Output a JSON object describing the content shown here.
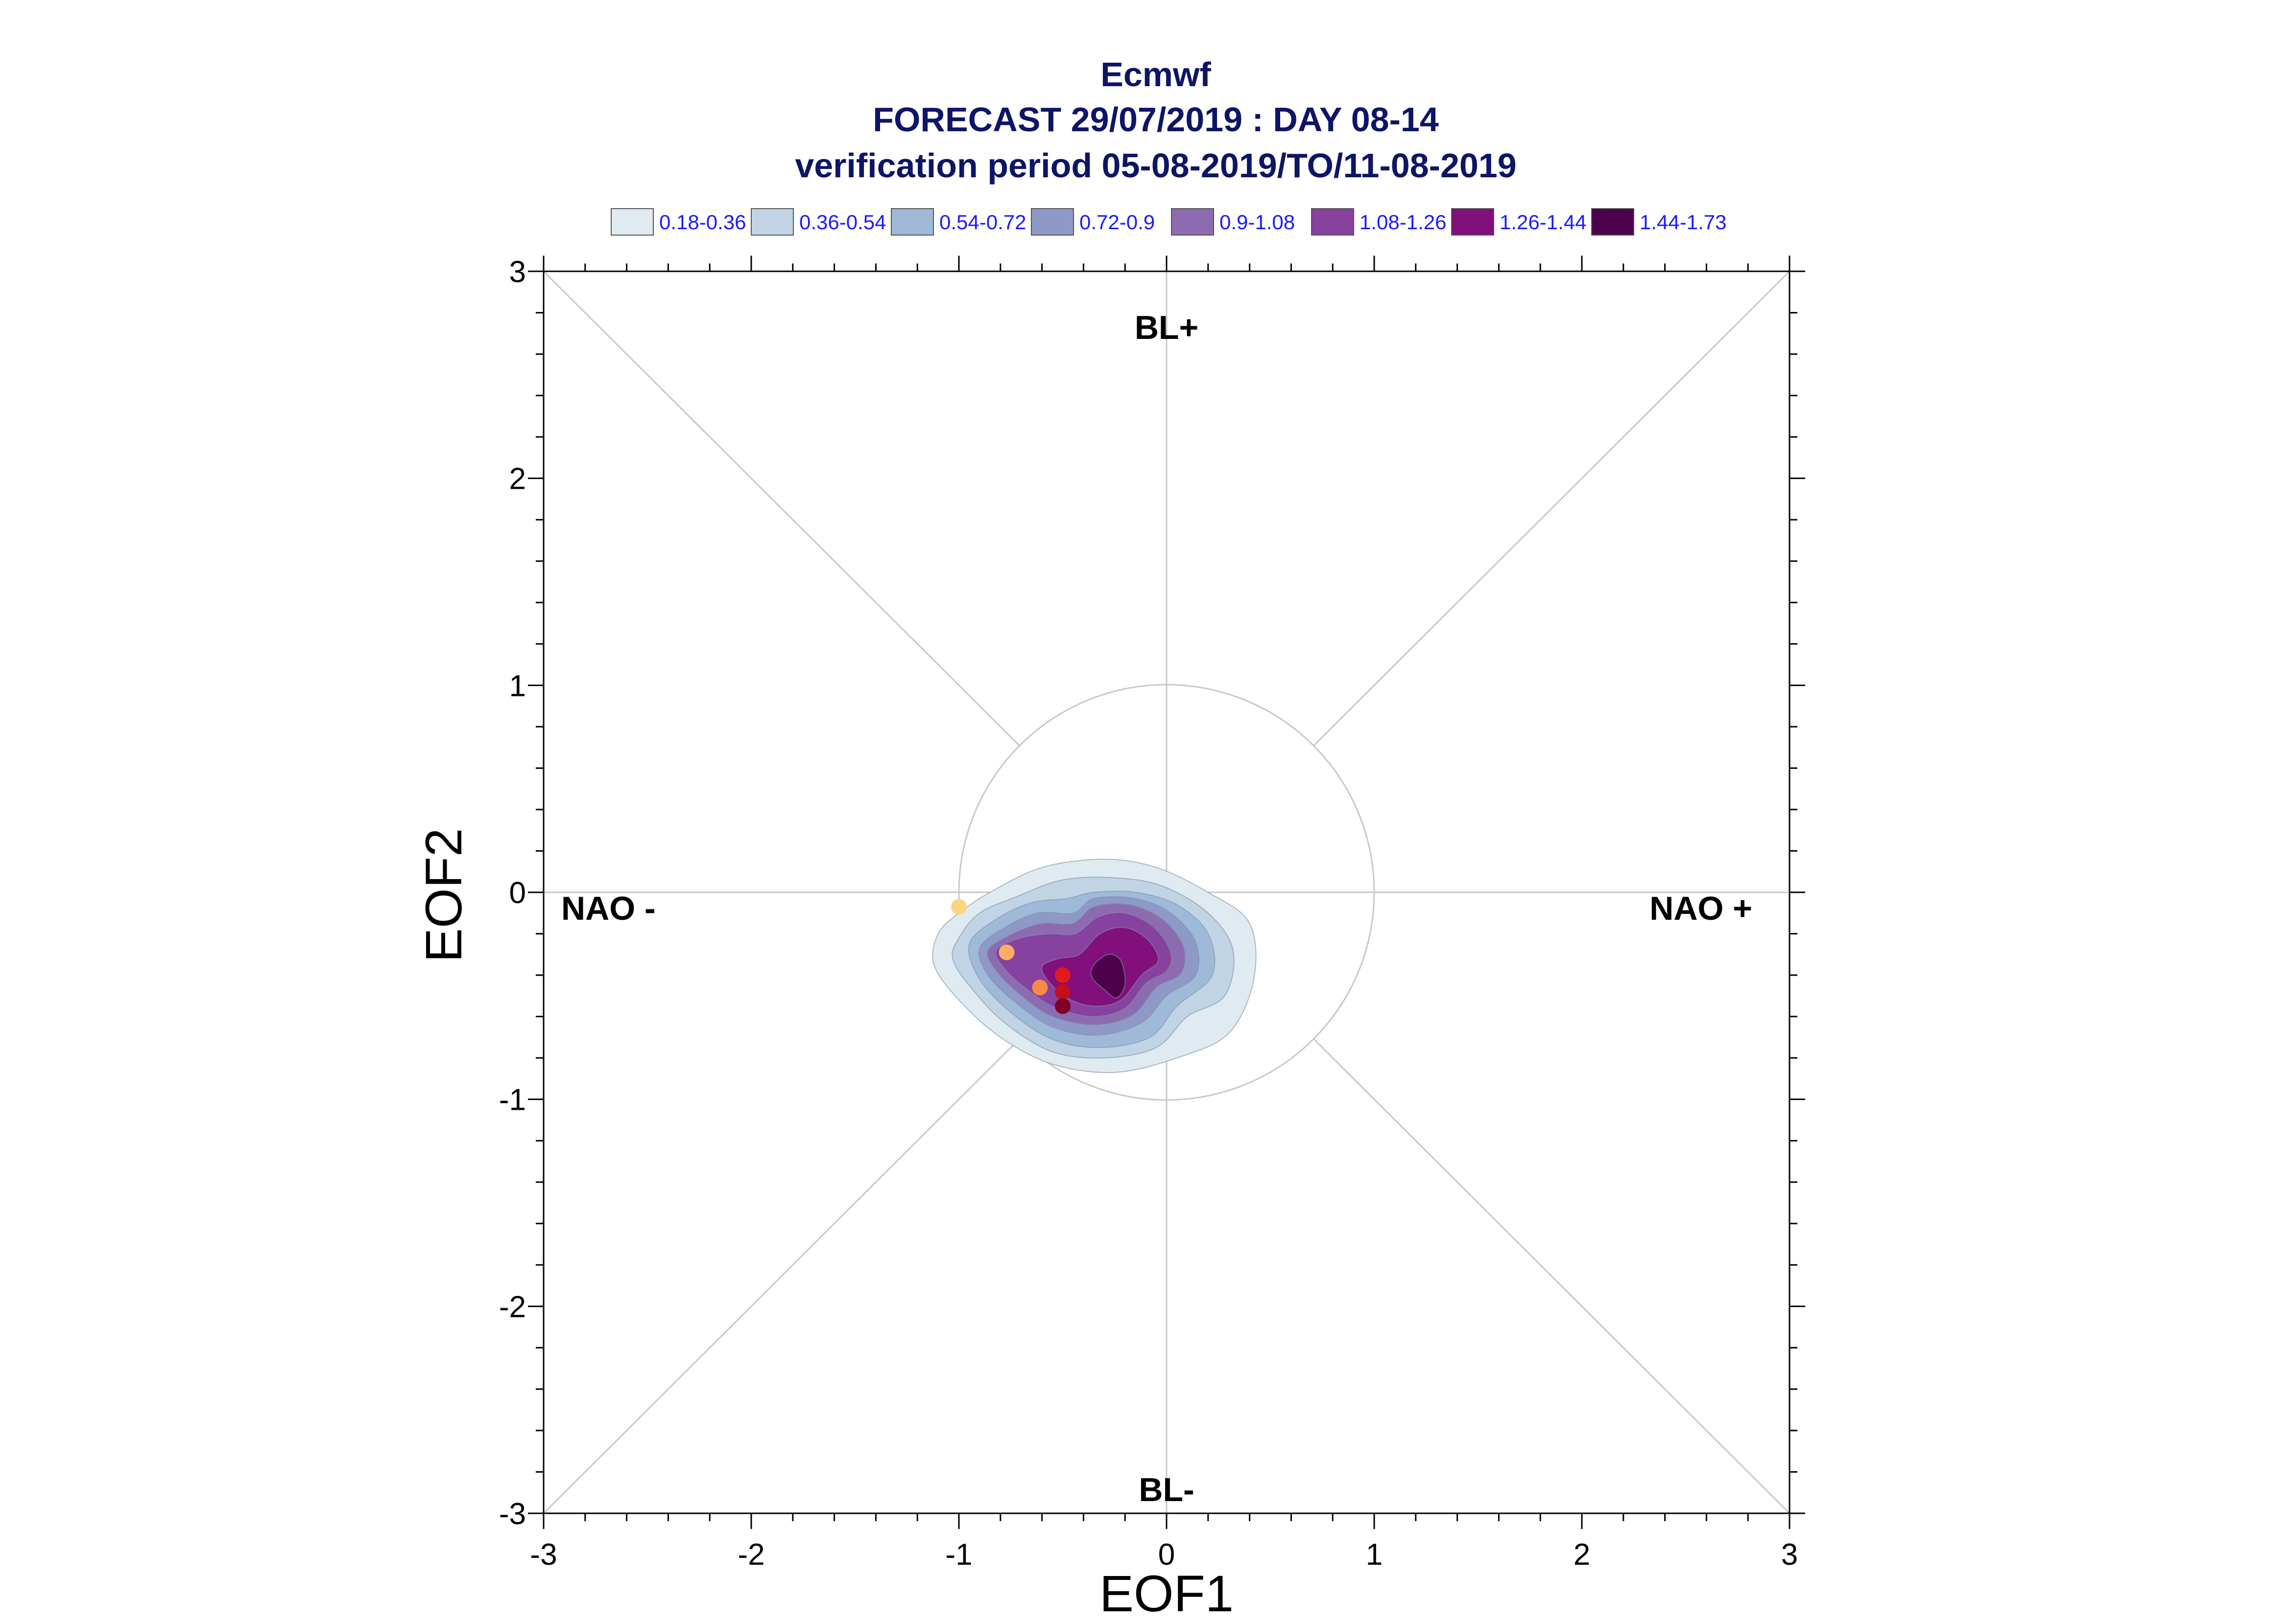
{
  "title": {
    "line1": "Ecmwf",
    "line2": "FORECAST 29/07/2019 : DAY 08-14",
    "line3": "verification period 05-08-2019/TO/11-08-2019"
  },
  "colors": {
    "title": "#0d1566",
    "legend_text": "#1a1aff",
    "axis": "#000000",
    "grid": "#c8c8c8"
  },
  "legend": [
    {
      "label": "0.18-0.36",
      "color": "#dfeaf1"
    },
    {
      "label": "0.36-0.54",
      "color": "#c1d4e5"
    },
    {
      "label": "0.54-0.72",
      "color": "#9fbad8"
    },
    {
      "label": "0.72-0.9",
      "color": "#8e99c8"
    },
    {
      "label": "0.9-1.08",
      "color": "#8c6bb1"
    },
    {
      "label": "1.08-1.26",
      "color": "#87419f"
    },
    {
      "label": "1.26-1.44",
      "color": "#810f7c"
    },
    {
      "label": "1.44-1.73",
      "color": "#4d004b"
    }
  ],
  "regime_labels": {
    "top": "BL+",
    "bottom": "BL-",
    "left": "NAO -",
    "right": "NAO +"
  },
  "chart_data": {
    "type": "scatter",
    "xlabel": "EOF1",
    "ylabel": "EOF2",
    "xlim": [
      -3,
      3
    ],
    "ylim": [
      -3,
      3
    ],
    "xticks": [
      "-3",
      "-2",
      "-1",
      "0",
      "1",
      "2",
      "3"
    ],
    "yticks": [
      "-3",
      "-2",
      "-1",
      "0",
      "1",
      "2",
      "3"
    ],
    "grid": "axes and diagonals",
    "unit_circle_radius": 1,
    "density_contours": [
      {
        "range": "0.18-0.36",
        "color": "#dfeaf1",
        "polygon": [
          [
            -1.1,
            -0.2
          ],
          [
            -1.0,
            -0.1
          ],
          [
            -0.85,
            0.0
          ],
          [
            -0.6,
            0.12
          ],
          [
            -0.3,
            0.16
          ],
          [
            -0.05,
            0.12
          ],
          [
            0.2,
            0.0
          ],
          [
            0.4,
            -0.15
          ],
          [
            0.42,
            -0.42
          ],
          [
            0.3,
            -0.68
          ],
          [
            0.05,
            -0.8
          ],
          [
            -0.25,
            -0.87
          ],
          [
            -0.55,
            -0.83
          ],
          [
            -0.8,
            -0.7
          ],
          [
            -1.0,
            -0.52
          ],
          [
            -1.12,
            -0.35
          ]
        ]
      },
      {
        "range": "0.36-0.54",
        "color": "#c1d4e5",
        "polygon": [
          [
            -1.0,
            -0.22
          ],
          [
            -0.9,
            -0.1
          ],
          [
            -0.72,
            -0.02
          ],
          [
            -0.5,
            0.06
          ],
          [
            -0.25,
            0.07
          ],
          [
            -0.02,
            0.03
          ],
          [
            0.2,
            -0.1
          ],
          [
            0.32,
            -0.28
          ],
          [
            0.28,
            -0.5
          ],
          [
            0.1,
            -0.6
          ],
          [
            -0.05,
            -0.75
          ],
          [
            -0.3,
            -0.8
          ],
          [
            -0.55,
            -0.77
          ],
          [
            -0.78,
            -0.63
          ],
          [
            -0.95,
            -0.45
          ],
          [
            -1.03,
            -0.32
          ]
        ]
      },
      {
        "range": "0.54-0.72",
        "color": "#9fbad8",
        "polygon": [
          [
            -0.95,
            -0.25
          ],
          [
            -0.82,
            -0.13
          ],
          [
            -0.65,
            -0.05
          ],
          [
            -0.48,
            -0.03
          ],
          [
            -0.35,
            0.0
          ],
          [
            -0.15,
            0.0
          ],
          [
            0.05,
            -0.06
          ],
          [
            0.2,
            -0.2
          ],
          [
            0.22,
            -0.4
          ],
          [
            0.05,
            -0.55
          ],
          [
            -0.08,
            -0.7
          ],
          [
            -0.32,
            -0.75
          ],
          [
            -0.55,
            -0.71
          ],
          [
            -0.75,
            -0.58
          ],
          [
            -0.9,
            -0.42
          ]
        ]
      },
      {
        "range": "0.72-0.9",
        "color": "#8e99c8",
        "polygon": [
          [
            -0.9,
            -0.27
          ],
          [
            -0.78,
            -0.17
          ],
          [
            -0.62,
            -0.1
          ],
          [
            -0.45,
            -0.1
          ],
          [
            -0.35,
            -0.03
          ],
          [
            -0.15,
            -0.03
          ],
          [
            0.02,
            -0.1
          ],
          [
            0.14,
            -0.24
          ],
          [
            0.14,
            -0.4
          ],
          [
            0.0,
            -0.5
          ],
          [
            -0.12,
            -0.63
          ],
          [
            -0.33,
            -0.69
          ],
          [
            -0.55,
            -0.65
          ],
          [
            -0.73,
            -0.53
          ],
          [
            -0.86,
            -0.4
          ]
        ]
      },
      {
        "range": "0.9-1.08",
        "color": "#8c6bb1",
        "polygon": [
          [
            -0.86,
            -0.28
          ],
          [
            -0.74,
            -0.2
          ],
          [
            -0.6,
            -0.15
          ],
          [
            -0.45,
            -0.15
          ],
          [
            -0.35,
            -0.07
          ],
          [
            -0.18,
            -0.06
          ],
          [
            -0.02,
            -0.13
          ],
          [
            0.08,
            -0.26
          ],
          [
            0.07,
            -0.39
          ],
          [
            -0.05,
            -0.46
          ],
          [
            -0.16,
            -0.59
          ],
          [
            -0.34,
            -0.64
          ],
          [
            -0.55,
            -0.6
          ],
          [
            -0.71,
            -0.49
          ],
          [
            -0.82,
            -0.38
          ]
        ]
      },
      {
        "range": "1.08-1.26",
        "color": "#87419f",
        "polygon": [
          [
            -0.82,
            -0.28
          ],
          [
            -0.7,
            -0.22
          ],
          [
            -0.56,
            -0.2
          ],
          [
            -0.44,
            -0.2
          ],
          [
            -0.33,
            -0.12
          ],
          [
            -0.2,
            -0.1
          ],
          [
            -0.06,
            -0.17
          ],
          [
            0.02,
            -0.29
          ],
          [
            0.0,
            -0.38
          ],
          [
            -0.1,
            -0.44
          ],
          [
            -0.2,
            -0.56
          ],
          [
            -0.35,
            -0.6
          ],
          [
            -0.53,
            -0.56
          ],
          [
            -0.67,
            -0.47
          ],
          [
            -0.78,
            -0.37
          ]
        ]
      },
      {
        "range": "1.26-1.44",
        "color": "#810f7c",
        "polygon": [
          [
            -0.6,
            -0.36
          ],
          [
            -0.52,
            -0.32
          ],
          [
            -0.42,
            -0.3
          ],
          [
            -0.32,
            -0.2
          ],
          [
            -0.2,
            -0.17
          ],
          [
            -0.09,
            -0.23
          ],
          [
            -0.04,
            -0.33
          ],
          [
            -0.12,
            -0.4
          ],
          [
            -0.22,
            -0.52
          ],
          [
            -0.34,
            -0.55
          ],
          [
            -0.46,
            -0.52
          ],
          [
            -0.56,
            -0.44
          ]
        ]
      },
      {
        "range": "1.44-1.73",
        "color": "#4d004b",
        "polygon": [
          [
            -0.35,
            -0.35
          ],
          [
            -0.28,
            -0.3
          ],
          [
            -0.22,
            -0.33
          ],
          [
            -0.2,
            -0.44
          ],
          [
            -0.24,
            -0.51
          ],
          [
            -0.3,
            -0.47
          ],
          [
            -0.36,
            -0.41
          ]
        ]
      }
    ],
    "points": [
      {
        "x": -1.0,
        "y": -0.07,
        "color": "#fdd481"
      },
      {
        "x": -0.77,
        "y": -0.29,
        "color": "#fdae61"
      },
      {
        "x": -0.61,
        "y": -0.46,
        "color": "#fb8a4a"
      },
      {
        "x": -0.5,
        "y": -0.4,
        "color": "#e31a1c"
      },
      {
        "x": -0.5,
        "y": -0.48,
        "color": "#c40f1c"
      },
      {
        "x": -0.5,
        "y": -0.55,
        "color": "#800026"
      }
    ]
  }
}
